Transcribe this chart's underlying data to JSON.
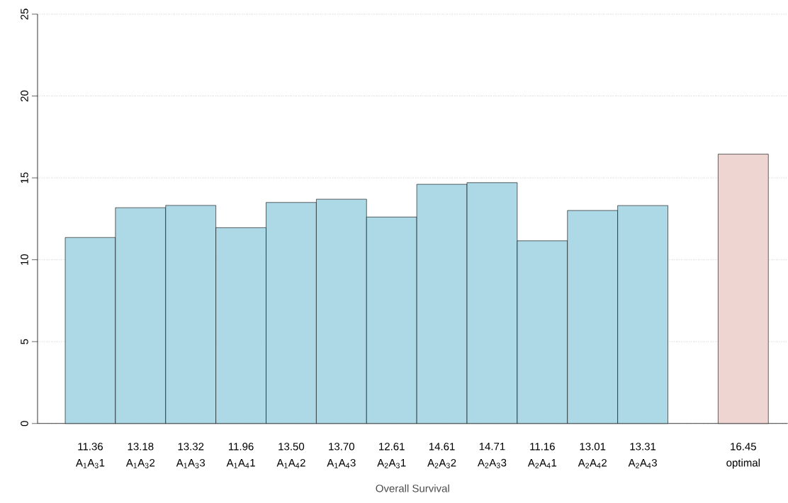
{
  "chart_data": {
    "type": "bar",
    "xlabel": "Overall Survival",
    "categories": [
      "A$_{1}$A$_{3}$1",
      "A$_{1}$A$_{3}$2",
      "A$_{1}$A$_{3}$3",
      "A$_{1}$A$_{4}$1",
      "A$_{1}$A$_{4}$2",
      "A$_{1}$A$_{4}$3",
      "A$_{2}$A$_{3}$1",
      "A$_{2}$A$_{3}$2",
      "A$_{2}$A$_{3}$3",
      "A$_{2}$A$_{4}$1",
      "A$_{2}$A$_{4}$2",
      "A$_{2}$A$_{4}$3",
      null,
      "optimal"
    ],
    "values": [
      11.36,
      13.18,
      13.32,
      11.96,
      13.5,
      13.7,
      12.61,
      14.61,
      14.71,
      11.16,
      13.01,
      13.31,
      null,
      16.45
    ],
    "value_labels": [
      "11.36",
      "13.18",
      "13.32",
      "11.96",
      "13.50",
      "13.70",
      "12.61",
      "14.61",
      "14.71",
      "11.16",
      "13.01",
      "13.31",
      null,
      "16.45"
    ],
    "colors": [
      "#add8e6",
      "#add8e6",
      "#add8e6",
      "#add8e6",
      "#add8e6",
      "#add8e6",
      "#add8e6",
      "#add8e6",
      "#add8e6",
      "#add8e6",
      "#add8e6",
      "#add8e6",
      null,
      "#eed5d2"
    ],
    "ylim": [
      0,
      25
    ],
    "yticks": [
      0,
      5,
      10,
      15,
      20,
      25
    ],
    "grid": "y"
  }
}
